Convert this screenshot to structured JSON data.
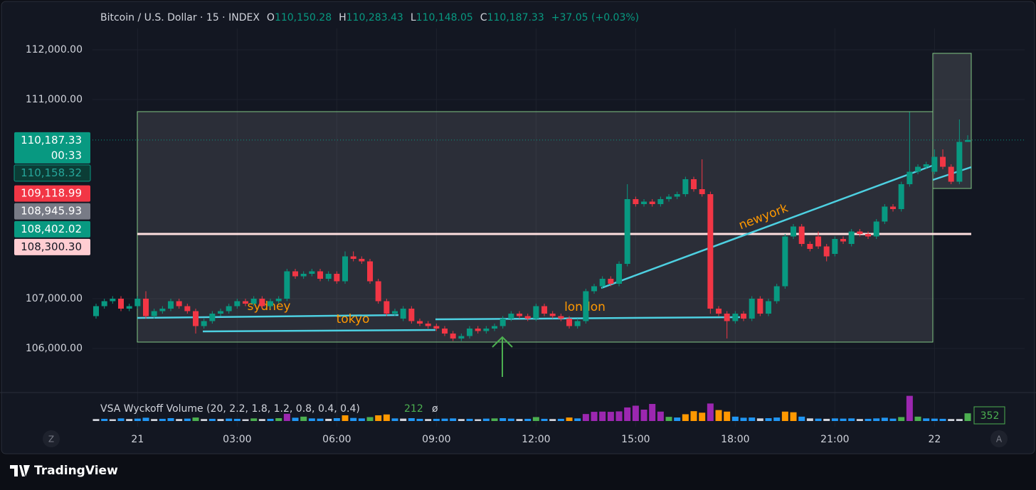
{
  "chart_data": {
    "type": "candlestick",
    "title": "Bitcoin / U.S. Dollar · 15 · INDEX",
    "legend": [
      {
        "key": "O",
        "value": "110,150.28"
      },
      {
        "key": "H",
        "value": "110,283.43"
      },
      {
        "key": "L",
        "value": "110,148.05"
      },
      {
        "key": "C",
        "value": "110,187.33"
      }
    ],
    "change": "+37.05 (+0.03%)",
    "categories": [
      null,
      null,
      null,
      null,
      null,
      "21",
      null,
      null,
      null,
      null,
      null,
      null,
      null,
      null,
      null,
      null,
      null,
      "03:00",
      null,
      null,
      null,
      null,
      null,
      null,
      null,
      null,
      null,
      null,
      null,
      "06:00",
      null,
      null,
      null,
      null,
      null,
      null,
      null,
      null,
      null,
      null,
      null,
      "09:00",
      null,
      null,
      null,
      null,
      null,
      null,
      null,
      null,
      null,
      null,
      null,
      "12:00",
      null,
      null,
      null,
      null,
      null,
      null,
      null,
      null,
      null,
      null,
      null,
      "15:00",
      null,
      null,
      null,
      null,
      null,
      null,
      null,
      null,
      null,
      null,
      null,
      "18:00",
      null,
      null,
      null,
      null,
      null,
      null,
      null,
      null,
      null,
      null,
      null,
      "21:00",
      null,
      null,
      null,
      null,
      null,
      null,
      null,
      null,
      null,
      null,
      null,
      "22",
      null,
      null,
      null,
      null
    ],
    "open": [
      106650,
      106850,
      106950,
      107000,
      106800,
      106850,
      107000,
      106650,
      106750,
      106800,
      106950,
      106850,
      106750,
      106450,
      106550,
      106700,
      106750,
      106850,
      106950,
      106900,
      107000,
      106850,
      106950,
      107000,
      107550,
      107450,
      107500,
      107550,
      107400,
      107500,
      107350,
      107850,
      107800,
      107750,
      107350,
      106950,
      106700,
      106600,
      106800,
      106550,
      106500,
      106450,
      106400,
      106300,
      106200,
      106250,
      106400,
      106350,
      106400,
      106450,
      106600,
      106700,
      106650,
      106600,
      106850,
      106700,
      106650,
      106600,
      106450,
      106550,
      107150,
      107250,
      107400,
      107300,
      107700,
      109000,
      108900,
      108950,
      108900,
      109000,
      109050,
      109100,
      109400,
      109200,
      109100,
      106800,
      106700,
      106550,
      106700,
      106600,
      107000,
      106700,
      106950,
      107250,
      108250,
      108450,
      108100,
      108250,
      108050,
      107900,
      108200,
      108100,
      108350,
      108300,
      108250,
      108550,
      108850,
      108800,
      109300,
      109550,
      109650,
      109550,
      109850,
      109650,
      109350,
      110150.28
    ],
    "high": [
      106900,
      107000,
      107050,
      107050,
      106900,
      107050,
      107150,
      106800,
      106850,
      107000,
      107000,
      106900,
      106800,
      106600,
      106750,
      106800,
      106900,
      107000,
      107000,
      107050,
      107050,
      107000,
      107050,
      107600,
      107600,
      107550,
      107600,
      107600,
      107550,
      107550,
      107950,
      107950,
      107850,
      107800,
      107400,
      107000,
      106800,
      106850,
      106850,
      106600,
      106550,
      106500,
      106450,
      106350,
      106300,
      106450,
      106450,
      106450,
      106500,
      106650,
      106750,
      106750,
      106700,
      106900,
      106900,
      106750,
      106700,
      106650,
      106600,
      107200,
      107300,
      107450,
      107450,
      107750,
      109300,
      109050,
      109000,
      109000,
      109050,
      109100,
      109150,
      109450,
      109450,
      109800,
      109150,
      106850,
      106750,
      106750,
      106750,
      107050,
      107050,
      107000,
      107300,
      108300,
      108500,
      108500,
      108150,
      108350,
      108100,
      108250,
      108250,
      108400,
      108400,
      108350,
      108600,
      108900,
      108900,
      109350,
      110750,
      109700,
      109750,
      110000,
      110000,
      109700,
      110600,
      110283.43
    ],
    "low": [
      106600,
      106800,
      106900,
      106750,
      106750,
      106800,
      106600,
      106600,
      106700,
      106750,
      106800,
      106700,
      106300,
      106400,
      106500,
      106650,
      106700,
      106800,
      106850,
      106850,
      106800,
      106800,
      106900,
      106950,
      107400,
      107400,
      107450,
      107350,
      107350,
      107300,
      107300,
      107750,
      107700,
      107300,
      106900,
      106650,
      106650,
      106550,
      106500,
      106450,
      106400,
      106350,
      106250,
      106150,
      106150,
      106200,
      106300,
      106300,
      106350,
      106400,
      106550,
      106600,
      106550,
      106550,
      106650,
      106600,
      106550,
      106400,
      106400,
      106500,
      107100,
      107200,
      107250,
      107250,
      107650,
      108850,
      108850,
      108850,
      108850,
      108950,
      109000,
      109050,
      109150,
      109050,
      106700,
      106650,
      106200,
      106500,
      106550,
      106550,
      106650,
      106650,
      106900,
      107200,
      108200,
      108050,
      107950,
      108000,
      107750,
      107850,
      108100,
      108050,
      108250,
      108200,
      108200,
      108500,
      108750,
      108750,
      109250,
      109500,
      109600,
      109500,
      109600,
      109300,
      109300,
      110148.05
    ],
    "close": [
      106850,
      106950,
      107000,
      106800,
      106850,
      107000,
      106650,
      106750,
      106800,
      106950,
      106850,
      106750,
      106450,
      106550,
      106700,
      106750,
      106850,
      106950,
      106900,
      107000,
      106850,
      106950,
      107000,
      107550,
      107450,
      107500,
      107550,
      107400,
      107500,
      107350,
      107850,
      107800,
      107750,
      107350,
      106950,
      106700,
      106750,
      106800,
      106550,
      106500,
      106450,
      106400,
      106300,
      106200,
      106250,
      106400,
      106350,
      106400,
      106450,
      106600,
      106700,
      106650,
      106600,
      106850,
      106700,
      106650,
      106600,
      106450,
      106550,
      107150,
      107250,
      107400,
      107300,
      107700,
      109000,
      108900,
      108950,
      108900,
      109000,
      109050,
      109100,
      109400,
      109200,
      109100,
      106800,
      106700,
      106550,
      106700,
      106600,
      107000,
      106700,
      106950,
      107250,
      108250,
      108450,
      108100,
      108000,
      108050,
      107850,
      108200,
      108150,
      108350,
      108300,
      108250,
      108550,
      108850,
      108800,
      109300,
      109550,
      109650,
      109700,
      109850,
      109650,
      109350,
      110150,
      110187.33
    ],
    "up_color": "#089981",
    "down_color": "#f23645",
    "ylim": [
      105142.86,
      112428.57
    ],
    "yticks": [
      {
        "value": 106000,
        "label": "106,000.00"
      },
      {
        "value": 107000,
        "label": "107,000.00"
      },
      {
        "value": 111000,
        "label": "111,000.00"
      },
      {
        "value": 112000,
        "label": "112,000.00"
      }
    ],
    "grid": true,
    "price_labels": [
      {
        "value": 110187.33,
        "label": "110,187.33",
        "countdown": "00:33",
        "color": "#089981"
      },
      {
        "value": 110158.32,
        "label": "110,158.32",
        "color": "#0b3d36"
      },
      {
        "value": 109118.99,
        "label": "109,118.99",
        "color": "#f23645"
      },
      {
        "value": 108945.93,
        "label": "108,945.93",
        "color": "#787b86"
      },
      {
        "value": 108402.02,
        "label": "108,402.02",
        "color": "#089981"
      },
      {
        "value": 108300.3,
        "label": "108,300.30",
        "color": "#ffcdd2"
      }
    ],
    "annotations": [
      "sydney",
      "tokyo",
      "london",
      "newyork"
    ],
    "volume": {
      "title": "VSA Wyckoff Volume (20, 2.2, 1.8, 1.2, 0.8, 0.4, 0.4)",
      "average": 212,
      "symbol": "ø",
      "ylim": [
        0,
        1300
      ],
      "values": [
        90,
        100,
        80,
        120,
        90,
        110,
        150,
        90,
        100,
        130,
        90,
        110,
        160,
        90,
        100,
        90,
        110,
        100,
        80,
        120,
        90,
        100,
        130,
        330,
        150,
        200,
        120,
        110,
        100,
        130,
        260,
        140,
        120,
        180,
        260,
        300,
        120,
        110,
        130,
        100,
        90,
        100,
        110,
        120,
        90,
        100,
        80,
        110,
        120,
        130,
        110,
        90,
        100,
        180,
        100,
        90,
        100,
        160,
        120,
        320,
        420,
        430,
        420,
        440,
        620,
        700,
        520,
        780,
        430,
        190,
        160,
        310,
        450,
        380,
        800,
        500,
        430,
        200,
        150,
        160,
        120,
        130,
        160,
        430,
        400,
        200,
        120,
        110,
        100,
        120,
        110,
        120,
        90,
        100,
        120,
        150,
        110,
        180,
        1150,
        200,
        120,
        110,
        100,
        90,
        90,
        352
      ],
      "colors": [
        "#d1d4dc",
        "#2196f3",
        "#d1d4dc",
        "#2196f3",
        "#d1d4dc",
        "#2196f3",
        "#2196f3",
        "#d1d4dc",
        "#2196f3",
        "#2196f3",
        "#d1d4dc",
        "#2196f3",
        "#4caf50",
        "#d1d4dc",
        "#2196f3",
        "#d1d4dc",
        "#2196f3",
        "#2196f3",
        "#d1d4dc",
        "#4caf50",
        "#d1d4dc",
        "#2196f3",
        "#4caf50",
        "#9c27b0",
        "#2196f3",
        "#4caf50",
        "#2196f3",
        "#2196f3",
        "#d1d4dc",
        "#2196f3",
        "#ff9800",
        "#2196f3",
        "#2196f3",
        "#4caf50",
        "#ff9800",
        "#ff9800",
        "#2196f3",
        "#d1d4dc",
        "#2196f3",
        "#2196f3",
        "#d1d4dc",
        "#2196f3",
        "#2196f3",
        "#2196f3",
        "#d1d4dc",
        "#2196f3",
        "#d1d4dc",
        "#2196f3",
        "#4caf50",
        "#2196f3",
        "#2196f3",
        "#d1d4dc",
        "#2196f3",
        "#4caf50",
        "#2196f3",
        "#d1d4dc",
        "#2196f3",
        "#ff9800",
        "#2196f3",
        "#9c27b0",
        "#9c27b0",
        "#9c27b0",
        "#9c27b0",
        "#9c27b0",
        "#9c27b0",
        "#9c27b0",
        "#9c27b0",
        "#9c27b0",
        "#9c27b0",
        "#4caf50",
        "#2196f3",
        "#ff9800",
        "#ff9800",
        "#ff9800",
        "#9c27b0",
        "#ff9800",
        "#ff9800",
        "#2196f3",
        "#2196f3",
        "#2196f3",
        "#d1d4dc",
        "#2196f3",
        "#2196f3",
        "#ff9800",
        "#ff9800",
        "#2196f3",
        "#d1d4dc",
        "#2196f3",
        "#d1d4dc",
        "#2196f3",
        "#2196f3",
        "#2196f3",
        "#d1d4dc",
        "#2196f3",
        "#2196f3",
        "#2196f3",
        "#2196f3",
        "#4caf50",
        "#9c27b0",
        "#4caf50",
        "#2196f3",
        "#2196f3",
        "#2196f3",
        "#d1d4dc",
        "#d1d4dc",
        "#4caf50"
      ]
    },
    "scale_buttons": [
      "Z",
      "A"
    ],
    "brand": "TradingView"
  }
}
